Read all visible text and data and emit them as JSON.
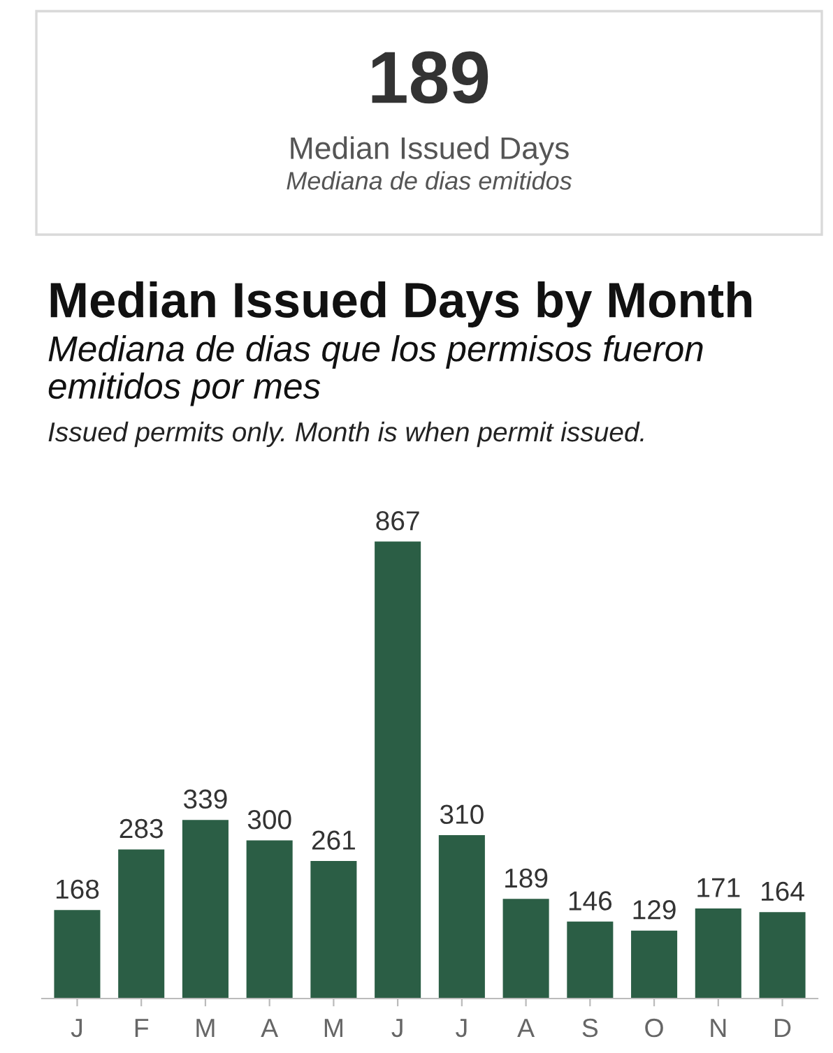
{
  "chart_data": [
    {
      "type": "other",
      "title": "189",
      "subtitle": "Median Issued Days",
      "annotations": [
        "Mediana de dias emitidos"
      ]
    },
    {
      "type": "bar",
      "title": "Median Issued Days by Month",
      "subtitle": "Mediana de dias que los permisos fueron emitidos por mes",
      "annotations": [
        "Issued permits only. Month is when permit issued."
      ],
      "categories": [
        "J",
        "F",
        "M",
        "A",
        "M",
        "J",
        "J",
        "A",
        "S",
        "O",
        "N",
        "D"
      ],
      "values": [
        168,
        283,
        339,
        300,
        261,
        867,
        310,
        189,
        146,
        129,
        171,
        164
      ],
      "color": "#2b5e45",
      "data_labels": true,
      "grid": false
    }
  ]
}
